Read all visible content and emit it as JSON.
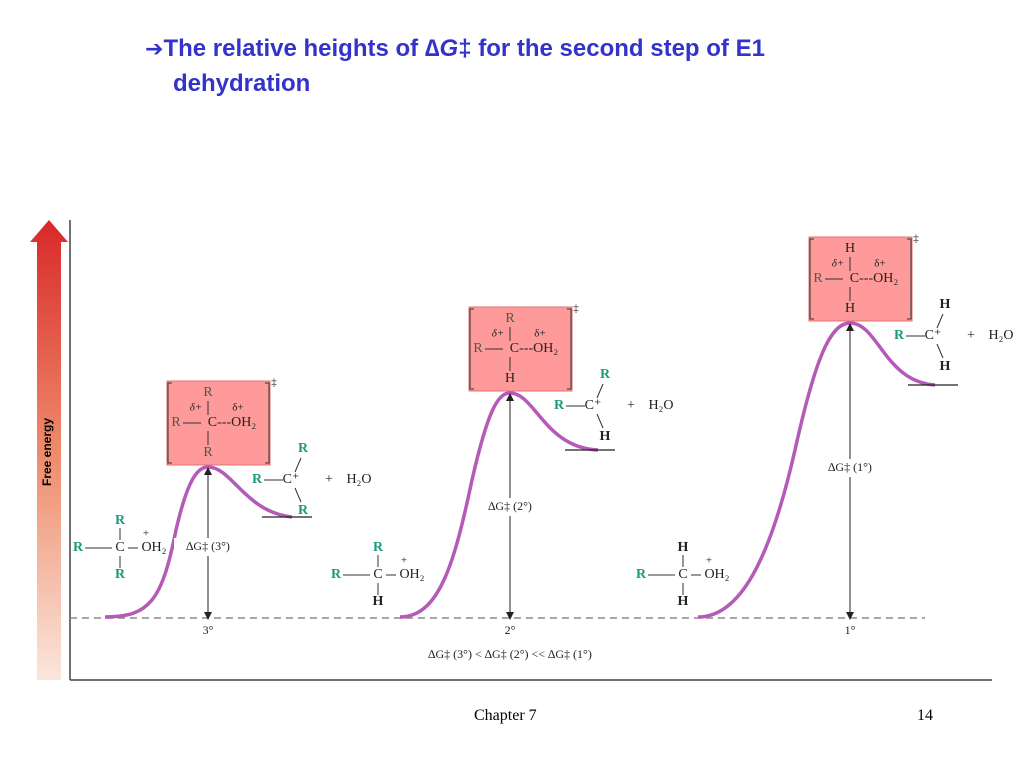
{
  "title": {
    "arrow": "➔",
    "lead": "The relative heights of ",
    "symbol": "∆G",
    "dagger": "‡",
    "tail": " for the second step of E1",
    "line2": "dehydration"
  },
  "y_axis_label": "Free energy",
  "baseline_labels": [
    "3°",
    "2°",
    "1°"
  ],
  "delta_g_labels": [
    "∆G‡ (3°)",
    "∆G‡ (2°)",
    "∆G‡ (1°)"
  ],
  "comparison": "∆G‡ (3°) < ∆G‡ (2°) << ∆G‡ (1°)",
  "reactants": [
    {
      "top": "R",
      "left": "R",
      "center": "C",
      "charge": "+",
      "right": "OH₂",
      "bottom": "R"
    },
    {
      "top": "R",
      "left": "R",
      "center": "C",
      "charge": "+",
      "right": "OH₂",
      "bottom": "H"
    },
    {
      "top": "H",
      "left": "R",
      "center": "C",
      "charge": "+",
      "right": "OH₂",
      "bottom": "H"
    }
  ],
  "transition_states": [
    {
      "top": "R",
      "left": "R",
      "center": "C---OH₂",
      "partial_left": "δ+",
      "partial_right": "δ+",
      "bottom": "R",
      "dagger": "‡"
    },
    {
      "top": "R",
      "left": "R",
      "center": "C---OH₂",
      "partial_left": "δ+",
      "partial_right": "δ+",
      "bottom": "H",
      "dagger": "‡"
    },
    {
      "top": "H",
      "left": "R",
      "center": "C---OH₂",
      "partial_left": "δ+",
      "partial_right": "δ+",
      "bottom": "H",
      "dagger": "‡"
    }
  ],
  "products": [
    {
      "top": "R",
      "left": "R",
      "cation": "C⁺",
      "bottom": "R",
      "plus": "+",
      "water": "H₂O"
    },
    {
      "top": "R",
      "left": "R",
      "cation": "C⁺",
      "bottom": "H",
      "plus": "+",
      "water": "H₂O"
    },
    {
      "top": "H",
      "left": "R",
      "cation": "C⁺",
      "bottom": "H",
      "plus": "+",
      "water": "H₂O"
    }
  ],
  "footer": {
    "chapter": "Chapter 7",
    "page": "14"
  }
}
